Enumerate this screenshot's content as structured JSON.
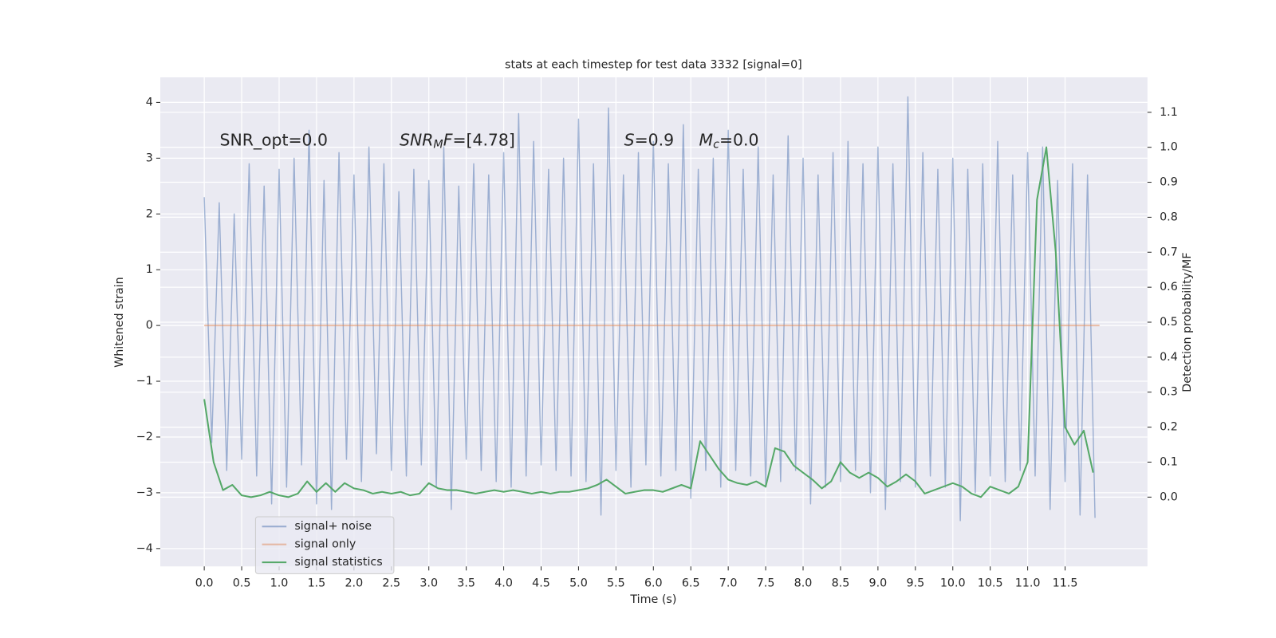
{
  "chart_data": {
    "type": "line",
    "title": "stats at each timestep for test data 3332 [signal=0]",
    "x_label": "Time (s)",
    "y_label": "Whitened strain",
    "y2_label": "Detection probability/MF",
    "annotations": [
      [
        {
          "text": "SNR_opt=0.0"
        }
      ],
      [
        {
          "text": "SNR",
          "italic": true
        },
        {
          "text": "M",
          "italic": true,
          "sub": true
        },
        {
          "text": "F",
          "italic": true
        },
        {
          "text": "=[4.78]"
        }
      ],
      [
        {
          "text": "S",
          "italic": true
        },
        {
          "text": "=0.9"
        }
      ],
      [
        {
          "text": "M",
          "italic": true
        },
        {
          "text": "c",
          "italic": true,
          "sub": true
        },
        {
          "text": "=0.0"
        }
      ]
    ],
    "xlim": [
      -0.587,
      12.6
    ],
    "ylim": [
      -4.32,
      4.45
    ],
    "y2lim": [
      -0.198,
      1.2
    ],
    "xticks": [
      {
        "value": 0,
        "label": "0.0"
      },
      {
        "value": 0.5,
        "label": "0.5"
      },
      {
        "value": 1,
        "label": "1.0"
      },
      {
        "value": 1.5,
        "label": "1.5"
      },
      {
        "value": 2,
        "label": "2.0"
      },
      {
        "value": 2.5,
        "label": "2.5"
      },
      {
        "value": 3,
        "label": "3.0"
      },
      {
        "value": 3.5,
        "label": "3.5"
      },
      {
        "value": 4,
        "label": "4.0"
      },
      {
        "value": 4.5,
        "label": "4.5"
      },
      {
        "value": 5,
        "label": "5.0"
      },
      {
        "value": 5.5,
        "label": "5.5"
      },
      {
        "value": 6,
        "label": "6.0"
      },
      {
        "value": 6.5,
        "label": "6.5"
      },
      {
        "value": 7,
        "label": "7.0"
      },
      {
        "value": 7.5,
        "label": "7.5"
      },
      {
        "value": 8,
        "label": "8.0"
      },
      {
        "value": 8.5,
        "label": "8.5"
      },
      {
        "value": 9,
        "label": "9.0"
      },
      {
        "value": 9.5,
        "label": "9.5"
      },
      {
        "value": 10,
        "label": "10.0"
      },
      {
        "value": 10.5,
        "label": "10.5"
      },
      {
        "value": 11,
        "label": "11.0"
      },
      {
        "value": 11.5,
        "label": "11.5"
      }
    ],
    "yticks": [
      {
        "value": -4,
        "label": "−4"
      },
      {
        "value": -3,
        "label": "−3"
      },
      {
        "value": -2,
        "label": "−2"
      },
      {
        "value": -1,
        "label": "−1"
      },
      0,
      1,
      2,
      3,
      4
    ],
    "y2ticks": [
      {
        "value": 0,
        "label": "0.0"
      },
      {
        "value": 0.1,
        "label": "0.1"
      },
      {
        "value": 0.2,
        "label": "0.2"
      },
      {
        "value": 0.3,
        "label": "0.3"
      },
      {
        "value": 0.4,
        "label": "0.4"
      },
      {
        "value": 0.5,
        "label": "0.5"
      },
      {
        "value": 0.6,
        "label": "0.6"
      },
      {
        "value": 0.7,
        "label": "0.7"
      },
      {
        "value": 0.8,
        "label": "0.8"
      },
      {
        "value": 0.9,
        "label": "0.9"
      },
      {
        "value": 1,
        "label": "1.0"
      },
      {
        "value": 1.1,
        "label": "1.1"
      }
    ],
    "grid": true,
    "legend": "lower left",
    "series": [
      {
        "name": "signal+ noise",
        "color": "#4c72b0",
        "opacity": 0.5,
        "x": [
          0,
          0.1,
          0.2,
          0.3,
          0.4,
          0.5,
          0.6,
          0.7,
          0.8,
          0.9,
          1,
          1.1,
          1.2,
          1.3,
          1.4,
          1.5,
          1.6,
          1.7,
          1.8,
          1.9,
          2,
          2.1,
          2.2,
          2.3,
          2.4,
          2.5,
          2.6,
          2.7,
          2.8,
          2.9,
          3,
          3.1,
          3.2,
          3.3,
          3.4,
          3.5,
          3.6,
          3.7,
          3.8,
          3.9,
          4,
          4.1,
          4.2,
          4.3,
          4.4,
          4.5,
          4.6,
          4.7,
          4.8,
          4.9,
          5,
          5.1,
          5.2,
          5.3,
          5.4,
          5.5,
          5.6,
          5.7,
          5.8,
          5.9,
          6,
          6.1,
          6.2,
          6.3,
          6.4,
          6.5,
          6.6,
          6.7,
          6.8,
          6.9,
          7,
          7.1,
          7.2,
          7.3,
          7.4,
          7.5,
          7.6,
          7.7,
          7.8,
          7.9,
          8,
          8.1,
          8.2,
          8.3,
          8.4,
          8.5,
          8.6,
          8.7,
          8.8,
          8.9,
          9,
          9.1,
          9.2,
          9.3,
          9.4,
          9.5,
          9.6,
          9.7,
          9.8,
          9.9,
          10,
          10.1,
          10.2,
          10.3,
          10.4,
          10.5,
          10.6,
          10.7,
          10.8,
          10.9,
          11,
          11.1,
          11.2,
          11.3,
          11.4,
          11.5,
          11.6,
          11.7,
          11.8,
          11.9
        ],
        "values": [
          2.3,
          -2.1,
          2.2,
          -2.6,
          2.0,
          -2.4,
          2.9,
          -2.7,
          2.5,
          -3.2,
          2.8,
          -2.9,
          3.0,
          -2.5,
          3.5,
          -3.2,
          2.6,
          -3.3,
          3.1,
          -2.4,
          2.7,
          -2.8,
          3.2,
          -2.3,
          2.9,
          -2.6,
          2.4,
          -2.7,
          2.8,
          -2.5,
          2.6,
          -2.9,
          3.2,
          -3.3,
          2.5,
          -2.4,
          2.9,
          -2.6,
          2.7,
          -2.8,
          3.1,
          -2.9,
          3.8,
          -2.7,
          3.3,
          -2.5,
          2.8,
          -2.6,
          3.0,
          -2.7,
          3.7,
          -2.8,
          2.9,
          -3.4,
          3.9,
          -2.6,
          2.7,
          -2.9,
          3.1,
          -2.5,
          3.3,
          -2.7,
          2.9,
          -2.6,
          3.6,
          -3.1,
          2.8,
          -2.6,
          3.0,
          -2.9,
          3.5,
          -2.6,
          2.8,
          -2.7,
          3.2,
          -2.9,
          2.7,
          -2.8,
          3.4,
          -2.6,
          3.0,
          -3.2,
          2.7,
          -2.9,
          3.1,
          -2.8,
          3.3,
          -2.6,
          2.9,
          -3.0,
          3.2,
          -3.3,
          2.9,
          -2.8,
          4.1,
          -2.9,
          3.1,
          -2.7,
          2.8,
          -2.9,
          3.0,
          -3.5,
          2.8,
          -3.0,
          2.9,
          -2.7,
          3.3,
          -2.8,
          2.7,
          -2.6,
          3.1,
          -2.7,
          3.2,
          -3.3,
          2.6,
          -2.8,
          2.9,
          -3.4,
          2.7,
          -3.45
        ]
      },
      {
        "name": "signal only",
        "color": "#dd8452",
        "opacity": 0.5,
        "x": [
          0,
          11.96
        ],
        "values": [
          0,
          0
        ]
      },
      {
        "name": "signal statistics",
        "color": "#55a868",
        "opacity": 1,
        "axis": "y2",
        "x": [
          0,
          0.125,
          0.25,
          0.375,
          0.5,
          0.625,
          0.75,
          0.875,
          1,
          1.125,
          1.25,
          1.375,
          1.5,
          1.625,
          1.75,
          1.875,
          2,
          2.125,
          2.25,
          2.375,
          2.5,
          2.625,
          2.75,
          2.875,
          3,
          3.125,
          3.25,
          3.375,
          3.5,
          3.625,
          3.75,
          3.875,
          4,
          4.125,
          4.25,
          4.375,
          4.5,
          4.625,
          4.75,
          4.875,
          5,
          5.125,
          5.25,
          5.375,
          5.5,
          5.625,
          5.75,
          5.875,
          6,
          6.125,
          6.25,
          6.375,
          6.5,
          6.625,
          6.75,
          6.875,
          7,
          7.125,
          7.25,
          7.375,
          7.5,
          7.625,
          7.75,
          7.875,
          8,
          8.125,
          8.25,
          8.375,
          8.5,
          8.625,
          8.75,
          8.875,
          9,
          9.125,
          9.25,
          9.375,
          9.5,
          9.625,
          9.75,
          9.875,
          10,
          10.125,
          10.25,
          10.375,
          10.5,
          10.625,
          10.75,
          10.875,
          11,
          11.125,
          11.25,
          11.375,
          11.5,
          11.625,
          11.75,
          11.875
        ],
        "values": [
          0.28,
          0.1,
          0.02,
          0.035,
          0.005,
          0.0,
          0.005,
          0.015,
          0.005,
          0.0,
          0.01,
          0.045,
          0.015,
          0.04,
          0.015,
          0.04,
          0.025,
          0.02,
          0.01,
          0.015,
          0.01,
          0.015,
          0.005,
          0.01,
          0.04,
          0.025,
          0.02,
          0.02,
          0.015,
          0.01,
          0.015,
          0.02,
          0.015,
          0.02,
          0.015,
          0.01,
          0.015,
          0.01,
          0.015,
          0.015,
          0.02,
          0.025,
          0.035,
          0.05,
          0.03,
          0.01,
          0.015,
          0.02,
          0.02,
          0.015,
          0.025,
          0.035,
          0.025,
          0.16,
          0.12,
          0.08,
          0.05,
          0.04,
          0.035,
          0.045,
          0.03,
          0.14,
          0.13,
          0.09,
          0.07,
          0.05,
          0.025,
          0.045,
          0.1,
          0.07,
          0.055,
          0.07,
          0.055,
          0.03,
          0.045,
          0.065,
          0.045,
          0.01,
          0.02,
          0.03,
          0.04,
          0.03,
          0.01,
          0.0,
          0.03,
          0.02,
          0.01,
          0.03,
          0.1,
          0.85,
          1.0,
          0.7,
          0.2,
          0.15,
          0.19,
          0.07
        ]
      }
    ]
  }
}
